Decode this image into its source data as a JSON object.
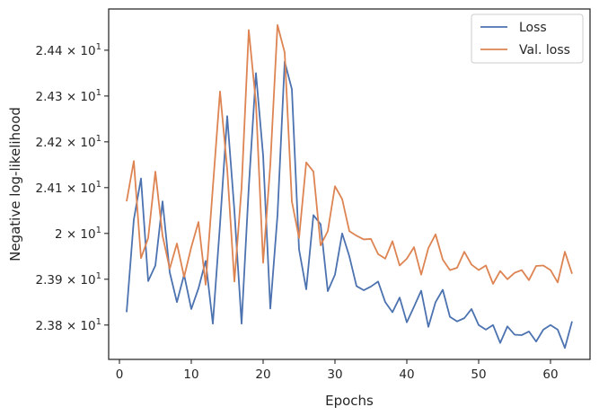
{
  "chart_data": {
    "type": "line",
    "title": "",
    "xlabel": "Epochs",
    "ylabel": "Negative log-likelihood",
    "xlim": [
      -1.5,
      65.5
    ],
    "ylim": [
      23.725,
      24.49
    ],
    "xticks": [
      0,
      10,
      20,
      30,
      40,
      50,
      60
    ],
    "xtick_labels": [
      "0",
      "10",
      "20",
      "30",
      "40",
      "50",
      "60"
    ],
    "yticks": [
      23.8,
      23.9,
      24.0,
      24.1,
      24.2,
      24.3,
      24.4
    ],
    "ytick_labels": [
      {
        "mantissa": "2.38",
        "times": "×",
        "base": "10",
        "exp": "1"
      },
      {
        "mantissa": "2.39",
        "times": "×",
        "base": "10",
        "exp": "1"
      },
      {
        "mantissa": "2",
        "times": "×",
        "base": "10",
        "exp": "1"
      },
      {
        "mantissa": "2.41",
        "times": "×",
        "base": "10",
        "exp": "1"
      },
      {
        "mantissa": "2.42",
        "times": "×",
        "base": "10",
        "exp": "1"
      },
      {
        "mantissa": "2.43",
        "times": "×",
        "base": "10",
        "exp": "1"
      },
      {
        "mantissa": "2.44",
        "times": "×",
        "base": "10",
        "exp": "1"
      }
    ],
    "grid": false,
    "legend_position": "top-right",
    "x": [
      1,
      2,
      3,
      4,
      5,
      6,
      7,
      8,
      9,
      10,
      11,
      12,
      13,
      14,
      15,
      16,
      17,
      18,
      19,
      20,
      21,
      22,
      23,
      24,
      25,
      26,
      27,
      28,
      29,
      30,
      31,
      32,
      33,
      34,
      35,
      36,
      37,
      38,
      39,
      40,
      41,
      42,
      43,
      44,
      45,
      46,
      47,
      48,
      49,
      50,
      51,
      52,
      53,
      54,
      55,
      56,
      57,
      58,
      59,
      60,
      61,
      62,
      63
    ],
    "series": [
      {
        "name": "Loss",
        "color": "#4c72b0",
        "values": [
          23.828,
          24.03,
          24.12,
          23.896,
          23.93,
          24.07,
          23.915,
          23.85,
          23.91,
          23.835,
          23.88,
          23.94,
          23.803,
          24.02,
          24.256,
          24.05,
          23.803,
          24.1,
          24.35,
          24.17,
          23.836,
          24.04,
          24.375,
          24.315,
          23.965,
          23.878,
          24.04,
          24.02,
          23.874,
          23.91,
          24.0,
          23.95,
          23.885,
          23.876,
          23.884,
          23.895,
          23.85,
          23.828,
          23.86,
          23.806,
          23.84,
          23.875,
          23.796,
          23.85,
          23.877,
          23.818,
          23.808,
          23.815,
          23.835,
          23.8,
          23.79,
          23.8,
          23.761,
          23.797,
          23.779,
          23.778,
          23.786,
          23.764,
          23.79,
          23.8,
          23.79,
          23.75,
          23.808
        ]
      },
      {
        "name": "Val. loss",
        "color": "#dd8452",
        "values": [
          24.07,
          24.158,
          23.946,
          23.99,
          24.135,
          23.995,
          23.923,
          23.978,
          23.905,
          23.97,
          24.025,
          23.888,
          24.1,
          24.31,
          24.14,
          23.895,
          24.1,
          24.444,
          24.285,
          23.936,
          24.15,
          24.455,
          24.395,
          24.07,
          23.99,
          24.155,
          24.135,
          23.974,
          24.005,
          24.103,
          24.075,
          24.005,
          23.995,
          23.987,
          23.988,
          23.955,
          23.945,
          23.983,
          23.93,
          23.945,
          23.97,
          23.91,
          23.968,
          23.998,
          23.943,
          23.92,
          23.925,
          23.96,
          23.932,
          23.92,
          23.93,
          23.89,
          23.918,
          23.9,
          23.914,
          23.92,
          23.898,
          23.929,
          23.93,
          23.92,
          23.893,
          23.96,
          23.912
        ]
      }
    ]
  }
}
